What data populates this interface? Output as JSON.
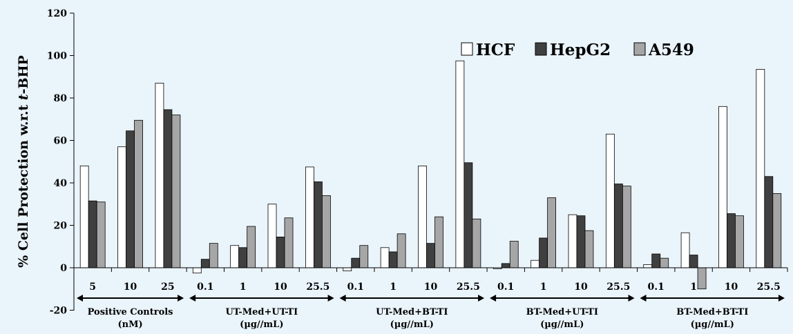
{
  "chart_data": {
    "type": "bar",
    "title": "",
    "xlabel": "",
    "ylabel": "% Cell Protection w.r.t ",
    "ylabel_italic": "t",
    "ylabel_suffix": "-BHP",
    "ylim": [
      -20,
      120
    ],
    "yticks": [
      "-20",
      "0",
      "20",
      "40",
      "60",
      "80",
      "100",
      "120"
    ],
    "legend_position": "top-right",
    "grid": false,
    "categories": [
      "5",
      "10",
      "25",
      "0.1",
      "1",
      "10",
      "25.5",
      "0.1",
      "1",
      "10",
      "25.5",
      "0.1",
      "1",
      "10",
      "25.5",
      "0.1",
      "1",
      "10",
      "25.5"
    ],
    "groups": [
      {
        "line1": "Positive Controls",
        "line2": "(nM)",
        "count": 3
      },
      {
        "line1": "UT-Med+UT-TI",
        "line2": "(µg//mL)",
        "count": 4
      },
      {
        "line1": "UT-Med+BT-TI",
        "line2": "(µg//mL)",
        "count": 4
      },
      {
        "line1": "BT-Med+UT-TI",
        "line2": "(µg//mL)",
        "count": 4
      },
      {
        "line1": "BT-Med+BT-TI",
        "line2": "(µg//mL)",
        "count": 4
      }
    ],
    "series": [
      {
        "name": "HCF",
        "color": "#ffffff",
        "values": [
          48,
          57,
          87,
          -2.5,
          10.5,
          30,
          47.5,
          -1.5,
          9.5,
          48,
          97.5,
          -0.5,
          3.5,
          25,
          63,
          1.5,
          16.5,
          76,
          93.5
        ]
      },
      {
        "name": "HepG2",
        "color": "#404040",
        "values": [
          31.5,
          64.5,
          74.5,
          4,
          9.5,
          14.5,
          40.5,
          4.5,
          7.5,
          11.5,
          49.5,
          2,
          14,
          24.5,
          39.5,
          6.5,
          6,
          25.5,
          43
        ]
      },
      {
        "name": "A549",
        "color": "#a6a6a6",
        "values": [
          31,
          69.5,
          72,
          11.5,
          19.5,
          23.5,
          34,
          10.5,
          16,
          24,
          23,
          12.5,
          33,
          17.5,
          38.5,
          4.5,
          -10,
          24.5,
          35
        ]
      }
    ]
  }
}
